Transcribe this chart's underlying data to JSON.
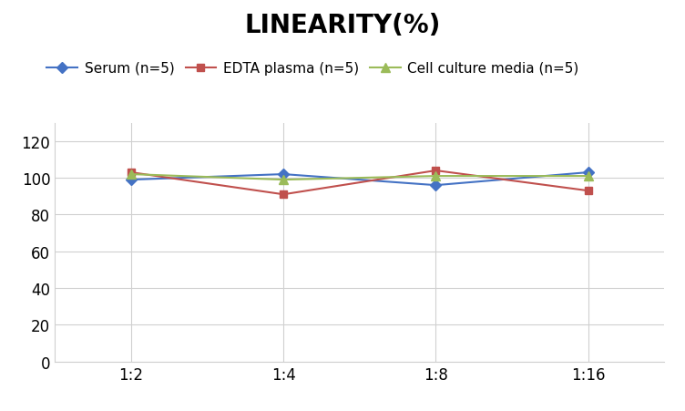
{
  "title": "LINEARITY(%)",
  "x_labels": [
    "1:2",
    "1:4",
    "1:8",
    "1:16"
  ],
  "x_positions": [
    0,
    1,
    2,
    3
  ],
  "series": [
    {
      "label": "Serum (n=5)",
      "values": [
        99,
        102,
        96,
        103
      ],
      "color": "#4472C4",
      "marker": "D",
      "markersize": 6
    },
    {
      "label": "EDTA plasma (n=5)",
      "values": [
        103,
        91,
        104,
        93
      ],
      "color": "#C0504D",
      "marker": "s",
      "markersize": 6
    },
    {
      "label": "Cell culture media (n=5)",
      "values": [
        102,
        99,
        101,
        101
      ],
      "color": "#9BBB59",
      "marker": "^",
      "markersize": 7
    }
  ],
  "ylim": [
    0,
    130
  ],
  "yticks": [
    0,
    20,
    40,
    60,
    80,
    100,
    120
  ],
  "background_color": "#ffffff",
  "grid_color": "#d0d0d0",
  "title_fontsize": 20,
  "legend_fontsize": 11,
  "tick_fontsize": 12,
  "linewidth": 1.5
}
